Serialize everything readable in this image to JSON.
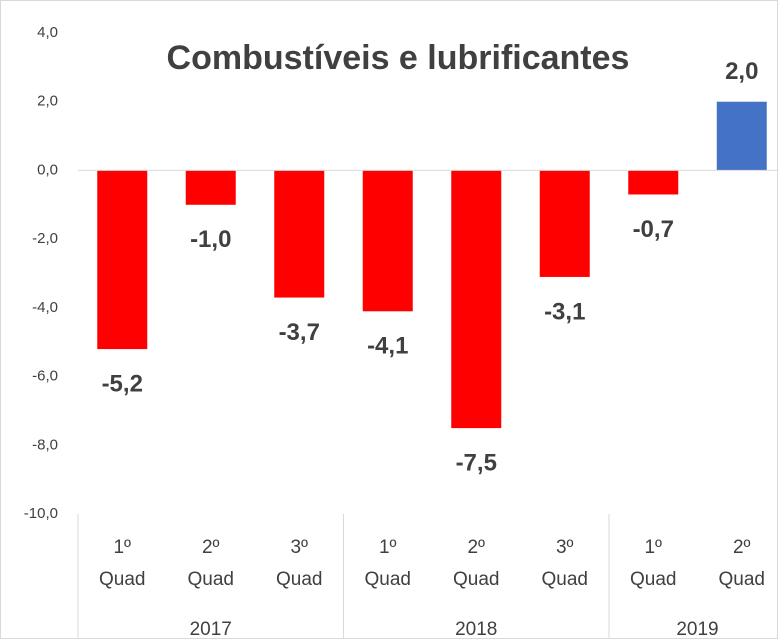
{
  "chart_data": {
    "type": "bar",
    "title": "Combustíveis e lubrificantes",
    "categories": [
      "1º Quad",
      "2º Quad",
      "3º Quad",
      "1º Quad",
      "2º Quad",
      "3º Quad",
      "1º Quad",
      "2º Quad"
    ],
    "groups": [
      {
        "name": "2017",
        "count": 3
      },
      {
        "name": "2018",
        "count": 3
      },
      {
        "name": "2019",
        "count": 2
      }
    ],
    "values": [
      -5.2,
      -1.0,
      -3.7,
      -4.1,
      -7.5,
      -3.1,
      -0.7,
      2.0
    ],
    "value_labels": [
      "-5,2",
      "-1,0",
      "-3,7",
      "-4,1",
      "-7,5",
      "-3,1",
      "-0,7",
      "2,0"
    ],
    "colors": [
      "#ff0000",
      "#ff0000",
      "#ff0000",
      "#ff0000",
      "#ff0000",
      "#ff0000",
      "#ff0000",
      "#4472c4"
    ],
    "ylim": [
      -10,
      4
    ],
    "yticks": [
      {
        "value": -10,
        "label": "-10,0"
      },
      {
        "value": -8,
        "label": "-8,0"
      },
      {
        "value": -6,
        "label": "-6,0"
      },
      {
        "value": -4,
        "label": "-4,0"
      },
      {
        "value": -2,
        "label": "-2,0"
      },
      {
        "value": 0,
        "label": "0,0"
      },
      {
        "value": 2,
        "label": "2,0"
      },
      {
        "value": 4,
        "label": "4,0"
      }
    ],
    "grid": false
  }
}
